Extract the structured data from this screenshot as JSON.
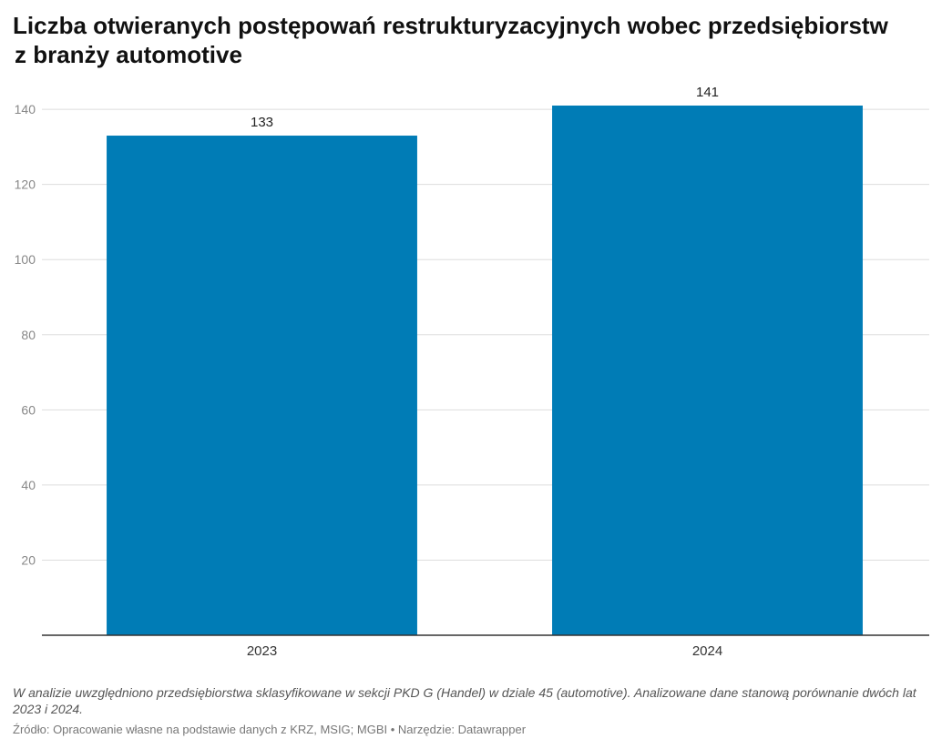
{
  "title": {
    "line1": "Liczba otwieranych postępowań restrukturyzacyjnych wobec przedsiębiorstw",
    "line2": "z branży automotive"
  },
  "note": "W analizie uwzględniono przedsiębiorstwa sklasyfikowane w sekcji PKD G (Handel) w dziale 45 (automotive). Analizowane dane stanową porównanie dwóch lat 2023 i 2024.",
  "source": "Źródło: Opracowanie własne na podstawie danych z KRZ, MSIG; MGBI • Narzędzie: Datawrapper",
  "chart_data": {
    "type": "bar",
    "categories": [
      "2023",
      "2024"
    ],
    "values": [
      133,
      141
    ],
    "data_labels": [
      "133",
      "141"
    ],
    "y_ticks": [
      20,
      40,
      60,
      80,
      100,
      120,
      140
    ],
    "y_tick_labels": [
      "20",
      "40",
      "60",
      "80",
      "100",
      "120",
      "140"
    ],
    "ylim": [
      0,
      141
    ],
    "grid": true,
    "legend": "none",
    "colors": {
      "bar": "#007cb6",
      "grid": "#dddddd",
      "axis": "#333333",
      "tick_label": "#888888",
      "category_label": "#333333",
      "data_label": "#222222"
    }
  }
}
